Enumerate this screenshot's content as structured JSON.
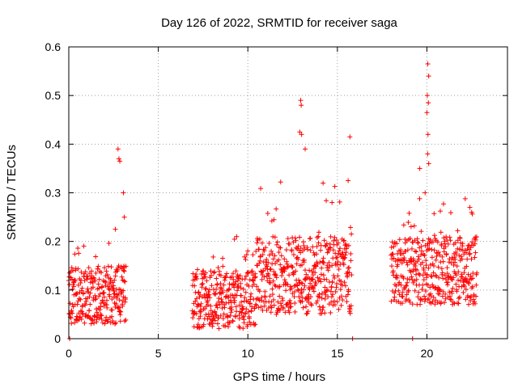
{
  "chart_data": {
    "type": "scatter",
    "title": "Day 126 of 2022, SRMTID for receiver saga",
    "xlabel": "GPS time / hours",
    "ylabel": "SRMTID / TECUs",
    "xlim": [
      0,
      24.5
    ],
    "ylim": [
      0,
      0.6
    ],
    "xticks": [
      0,
      5,
      10,
      15,
      20
    ],
    "xtick_labels": [
      "0",
      "5",
      "10",
      "15",
      "20"
    ],
    "yticks": [
      0,
      0.1,
      0.2,
      0.3,
      0.4,
      0.5,
      0.6
    ],
    "ytick_labels": [
      "0",
      "0.1",
      "0.2",
      "0.3",
      "0.4",
      "0.5",
      "0.6"
    ],
    "grid": true,
    "marker": "plus",
    "color": "#ff0000",
    "series": [
      {
        "name": "SRMTID",
        "segments": [
          {
            "start": 0.0,
            "end": 3.2,
            "step": 0.012,
            "mean": 0.09,
            "spread": 0.06
          },
          {
            "start": 6.9,
            "end": 10.5,
            "step": 0.012,
            "mean": 0.08,
            "spread": 0.06
          },
          {
            "start": 10.5,
            "end": 15.8,
            "step": 0.012,
            "mean": 0.13,
            "spread": 0.08
          },
          {
            "start": 18.0,
            "end": 22.8,
            "step": 0.012,
            "mean": 0.14,
            "spread": 0.07
          }
        ],
        "points": [
          [
            0.05,
            0.0
          ],
          [
            2.6,
            0.225
          ],
          [
            2.75,
            0.39
          ],
          [
            2.8,
            0.37
          ],
          [
            2.85,
            0.365
          ],
          [
            3.05,
            0.3
          ],
          [
            3.1,
            0.25
          ],
          [
            12.95,
            0.49
          ],
          [
            12.98,
            0.48
          ],
          [
            12.9,
            0.425
          ],
          [
            13.0,
            0.42
          ],
          [
            13.2,
            0.39
          ],
          [
            15.7,
            0.415
          ],
          [
            15.6,
            0.325
          ],
          [
            14.2,
            0.32
          ],
          [
            14.7,
            0.28
          ],
          [
            19.6,
            0.35
          ],
          [
            19.9,
            0.3
          ],
          [
            20.05,
            0.565
          ],
          [
            20.1,
            0.54
          ],
          [
            20.02,
            0.5
          ],
          [
            20.08,
            0.485
          ],
          [
            20.0,
            0.465
          ],
          [
            20.06,
            0.42
          ],
          [
            20.04,
            0.38
          ],
          [
            20.1,
            0.36
          ],
          [
            22.4,
            0.27
          ],
          [
            22.5,
            0.26
          ],
          [
            15.85,
            0.0
          ],
          [
            19.2,
            0.0
          ]
        ]
      }
    ]
  }
}
